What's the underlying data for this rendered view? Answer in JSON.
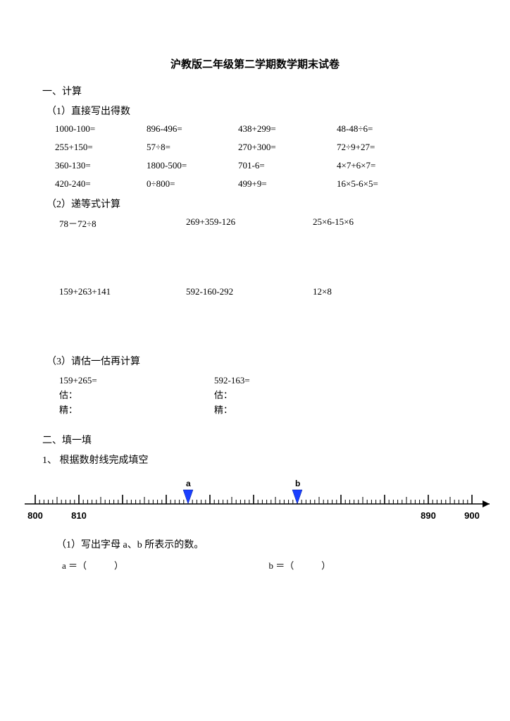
{
  "title": "沪教版二年级第二学期数学期末试卷",
  "s1": {
    "heading": "一、计算",
    "sub1": "（1）直接写出得数",
    "rows": [
      [
        "1000-100=",
        "896-496=",
        "438+299=",
        "48-48÷6="
      ],
      [
        "255+150=",
        "57÷8=",
        "270+300=",
        "72÷9+27="
      ],
      [
        "360-130=",
        "1800-500=",
        "701-6=",
        "4×7+6×7="
      ],
      [
        "420-240=",
        "0÷800=",
        "499+9=",
        "16×5-6×5="
      ]
    ],
    "sub2": "（2）递等式计算",
    "step_rows": [
      [
        "78－72÷8",
        "269+359-126",
        "25×6-15×6"
      ],
      [
        "159+263+141",
        "592-160-292",
        "12×8"
      ]
    ],
    "sub3": "（3）请估一估再计算",
    "est": {
      "left_expr": "159+265=",
      "right_expr": "592-163=",
      "gu": "估：",
      "jing": "精："
    }
  },
  "s2": {
    "heading": "二、填一填",
    "q1": "1、 根据数射线完成填空",
    "labels": {
      "a": "a",
      "b": "b"
    },
    "ticks": {
      "t800": "800",
      "t810": "810",
      "t890": "890",
      "t900": "900"
    },
    "sub1": "（1）写出字母 a、b 所表示的数。",
    "a_label": "a ＝（　　　）",
    "b_label": "b ＝（　　　）"
  },
  "style": {
    "marker_fill": "#1a3fff",
    "axis_color": "#000000"
  }
}
